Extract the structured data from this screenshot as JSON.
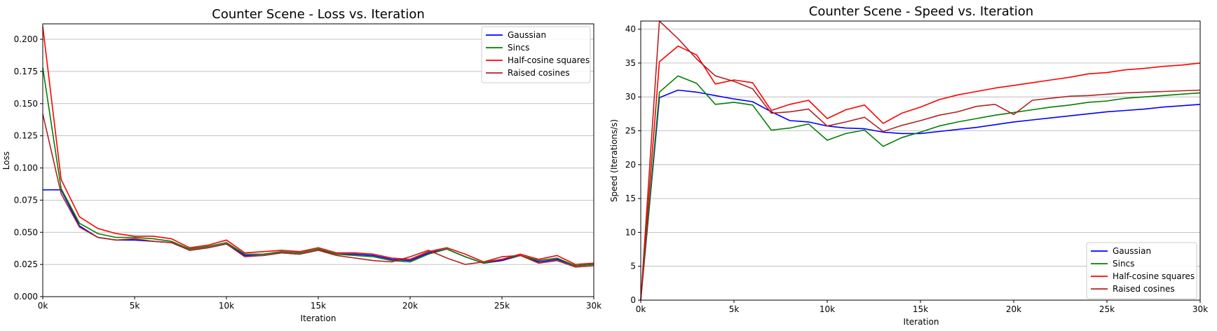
{
  "chart_data": [
    {
      "type": "line",
      "title": "Counter Scene - Loss vs. Iteration",
      "xlabel": "Iteration",
      "ylabel": "Loss",
      "xlim": [
        0,
        30000
      ],
      "ylim": [
        0,
        0.212
      ],
      "xticks": [
        0,
        5000,
        10000,
        15000,
        20000,
        25000,
        30000
      ],
      "xtick_labels": [
        "0k",
        "5k",
        "10k",
        "15k",
        "20k",
        "25k",
        "30k"
      ],
      "yticks": [
        0,
        0.025,
        0.05,
        0.075,
        0.1,
        0.125,
        0.15,
        0.175,
        0.2
      ],
      "ytick_labels": [
        "0.000",
        "0.025",
        "0.050",
        "0.075",
        "0.100",
        "0.125",
        "0.150",
        "0.175",
        "0.200"
      ],
      "grid": "horizontal",
      "legend_position": "top-right",
      "x": [
        0,
        1000,
        2000,
        3000,
        4000,
        5000,
        6000,
        7000,
        8000,
        9000,
        10000,
        11000,
        12000,
        13000,
        14000,
        15000,
        16000,
        17000,
        18000,
        19000,
        20000,
        21000,
        22000,
        23000,
        24000,
        25000,
        26000,
        27000,
        28000,
        29000,
        30000
      ],
      "series": [
        {
          "name": "Gaussian",
          "color": "#0000ff",
          "values": [
            0.083,
            0.083,
            0.055,
            0.046,
            0.044,
            0.044,
            0.043,
            0.042,
            0.036,
            0.038,
            0.041,
            0.032,
            0.032,
            0.034,
            0.033,
            0.036,
            0.033,
            0.033,
            0.032,
            0.029,
            0.028,
            0.034,
            0.037,
            0.031,
            0.026,
            0.028,
            0.032,
            0.027,
            0.029,
            0.024,
            0.025
          ]
        },
        {
          "name": "Sincs",
          "color": "#008000",
          "values": [
            0.178,
            0.084,
            0.057,
            0.049,
            0.046,
            0.046,
            0.045,
            0.043,
            0.037,
            0.039,
            0.042,
            0.033,
            0.033,
            0.035,
            0.034,
            0.037,
            0.033,
            0.032,
            0.031,
            0.028,
            0.027,
            0.033,
            0.037,
            0.031,
            0.026,
            0.029,
            0.032,
            0.028,
            0.03,
            0.024,
            0.025
          ]
        },
        {
          "name": "Half-cosine squares",
          "color": "#ff0000",
          "values": [
            0.21,
            0.091,
            0.062,
            0.053,
            0.049,
            0.047,
            0.047,
            0.045,
            0.038,
            0.04,
            0.044,
            0.034,
            0.035,
            0.036,
            0.035,
            0.038,
            0.034,
            0.034,
            0.033,
            0.03,
            0.029,
            0.035,
            0.038,
            0.033,
            0.027,
            0.029,
            0.033,
            0.029,
            0.032,
            0.025,
            0.026
          ]
        },
        {
          "name": "Raised cosines",
          "color": "#b22222",
          "values": [
            0.142,
            0.08,
            0.054,
            0.046,
            0.044,
            0.045,
            0.043,
            0.042,
            0.036,
            0.038,
            0.041,
            0.031,
            0.032,
            0.034,
            0.033,
            0.036,
            0.032,
            0.03,
            0.028,
            0.027,
            0.031,
            0.036,
            0.03,
            0.025,
            0.027,
            0.031,
            0.032,
            0.026,
            0.028,
            0.023,
            0.024
          ]
        }
      ]
    },
    {
      "type": "line",
      "title": "Counter Scene - Speed vs. Iteration",
      "xlabel": "Iteration",
      "ylabel": "Speed (Iterations/s)",
      "xlim": [
        0,
        30000
      ],
      "ylim": [
        0,
        41.2
      ],
      "xticks": [
        0,
        5000,
        10000,
        15000,
        20000,
        25000,
        30000
      ],
      "xtick_labels": [
        "0k",
        "5k",
        "10k",
        "15k",
        "20k",
        "25k",
        "30k"
      ],
      "yticks": [
        0,
        5,
        10,
        15,
        20,
        25,
        30,
        35,
        40
      ],
      "ytick_labels": [
        "0",
        "5",
        "10",
        "15",
        "20",
        "25",
        "30",
        "35",
        "40"
      ],
      "grid": "horizontal",
      "legend_position": "bottom-right",
      "x": [
        0,
        1000,
        2000,
        3000,
        4000,
        5000,
        6000,
        7000,
        8000,
        9000,
        10000,
        11000,
        12000,
        13000,
        14000,
        15000,
        16000,
        17000,
        18000,
        19000,
        20000,
        21000,
        22000,
        23000,
        24000,
        25000,
        26000,
        27000,
        28000,
        29000,
        30000
      ],
      "series": [
        {
          "name": "Gaussian",
          "color": "#0000ff",
          "values": [
            0,
            29.9,
            31.0,
            30.7,
            30.2,
            29.7,
            29.3,
            27.8,
            26.5,
            26.3,
            25.7,
            25.4,
            25.3,
            24.8,
            24.6,
            24.6,
            24.9,
            25.2,
            25.5,
            25.9,
            26.3,
            26.6,
            26.9,
            27.2,
            27.5,
            27.8,
            28.0,
            28.2,
            28.5,
            28.7,
            28.9
          ]
        },
        {
          "name": "Sincs",
          "color": "#008000",
          "values": [
            0,
            30.7,
            33.1,
            32.0,
            28.9,
            29.2,
            28.8,
            25.1,
            25.4,
            26.0,
            23.6,
            24.6,
            25.1,
            22.7,
            24.0,
            24.8,
            25.7,
            26.3,
            26.8,
            27.3,
            27.7,
            28.1,
            28.5,
            28.8,
            29.2,
            29.4,
            29.8,
            30.0,
            30.2,
            30.4,
            30.6
          ]
        },
        {
          "name": "Half-cosine squares",
          "color": "#ff0000",
          "values": [
            0,
            35.2,
            37.5,
            36.2,
            31.9,
            32.5,
            32.1,
            28.0,
            28.9,
            29.5,
            26.8,
            28.1,
            28.8,
            26.1,
            27.6,
            28.5,
            29.6,
            30.3,
            30.8,
            31.3,
            31.7,
            32.1,
            32.5,
            32.9,
            33.4,
            33.6,
            34.0,
            34.2,
            34.5,
            34.7,
            35.0
          ]
        },
        {
          "name": "Raised cosines",
          "color": "#b22222",
          "values": [
            0,
            41.2,
            38.6,
            35.6,
            33.1,
            32.3,
            31.2,
            27.6,
            27.8,
            28.2,
            25.7,
            26.3,
            27.0,
            24.9,
            25.8,
            26.5,
            27.3,
            27.8,
            28.6,
            28.9,
            27.4,
            29.5,
            29.8,
            30.1,
            30.2,
            30.4,
            30.6,
            30.7,
            30.8,
            30.9,
            31.0
          ]
        }
      ]
    }
  ]
}
